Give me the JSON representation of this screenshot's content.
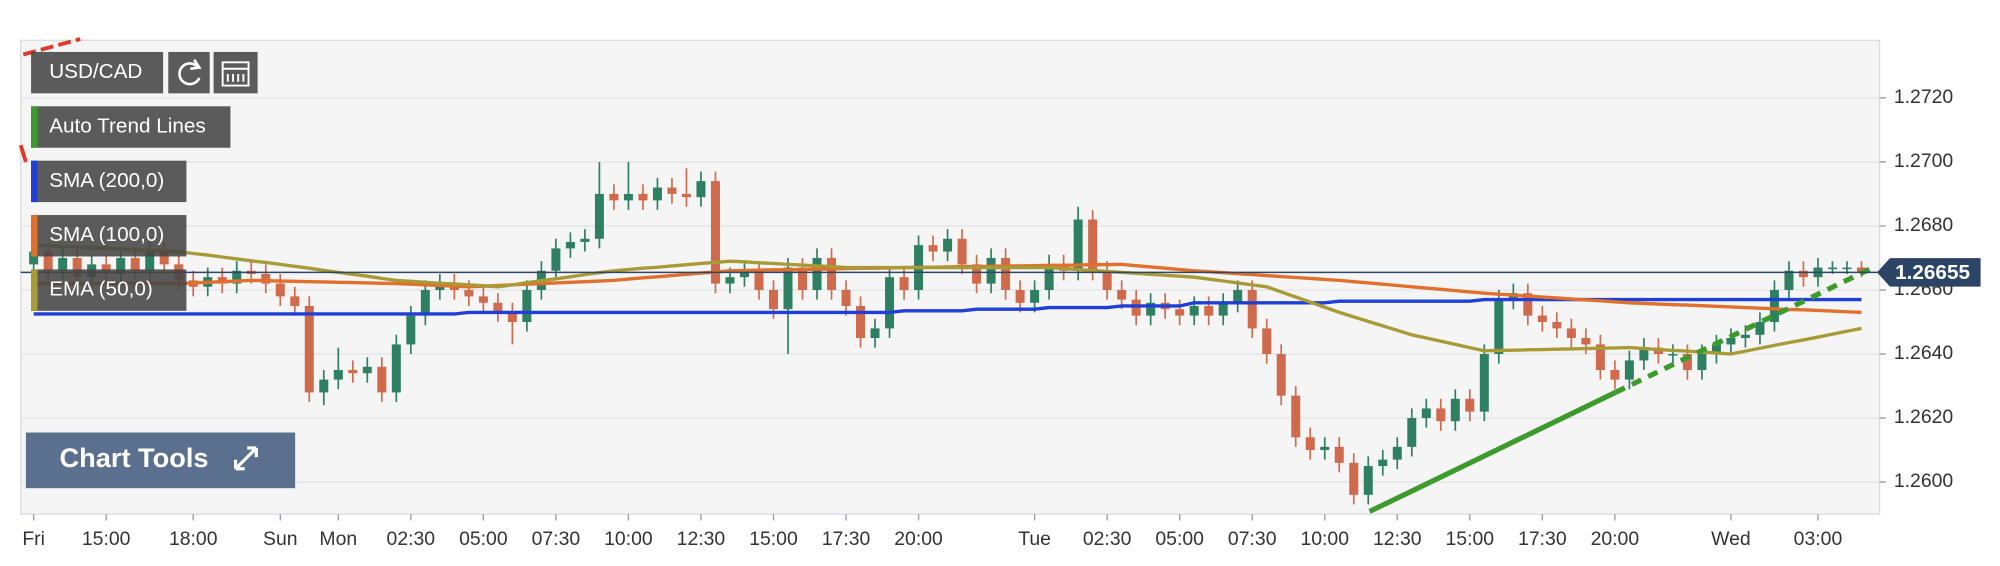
{
  "chart_data": {
    "type": "candlestick",
    "title": "USD/CAD",
    "up_color": "#2f7f62",
    "down_color": "#d06a4c",
    "ylim": [
      1.259,
      1.2738
    ],
    "yticks": [
      {
        "value": 1.26,
        "label": "1.2600"
      },
      {
        "value": 1.262,
        "label": "1.2620"
      },
      {
        "value": 1.264,
        "label": "1.2640"
      },
      {
        "value": 1.266,
        "label": "1.2660"
      },
      {
        "value": 1.268,
        "label": "1.2680"
      },
      {
        "value": 1.27,
        "label": "1.2700"
      },
      {
        "value": 1.272,
        "label": "1.2720"
      }
    ],
    "grid": true,
    "last_price": 1.26655,
    "trend_line": {
      "name": "Auto Trend Lines",
      "color": "#3d9a2c"
    },
    "categories": [
      "Fri",
      null,
      null,
      null,
      null,
      "15:00",
      null,
      null,
      null,
      null,
      null,
      "18:00",
      null,
      null,
      null,
      null,
      null,
      "Sun",
      null,
      null,
      null,
      "Mon",
      null,
      null,
      null,
      null,
      "02:30",
      null,
      null,
      null,
      null,
      "05:00",
      null,
      null,
      null,
      null,
      "07:30",
      null,
      null,
      null,
      null,
      "10:00",
      null,
      null,
      null,
      null,
      "12:30",
      null,
      null,
      null,
      null,
      "15:00",
      null,
      null,
      null,
      null,
      "17:30",
      null,
      null,
      null,
      null,
      "20:00",
      null,
      null,
      null,
      null,
      null,
      null,
      null,
      "Tue",
      null,
      null,
      null,
      null,
      "02:30",
      null,
      null,
      null,
      null,
      "05:00",
      null,
      null,
      null,
      null,
      "07:30",
      null,
      null,
      null,
      null,
      "10:00",
      null,
      null,
      null,
      null,
      "12:30",
      null,
      null,
      null,
      null,
      "15:00",
      null,
      null,
      null,
      null,
      "17:30",
      null,
      null,
      null,
      null,
      "20:00",
      null,
      null,
      null,
      null,
      null,
      null,
      null,
      "Wed",
      null,
      null,
      null,
      null,
      null,
      "03:00",
      null,
      null,
      null
    ],
    "open": [
      1.2668,
      1.2672,
      1.2666,
      1.267,
      1.2664,
      1.2668,
      1.2665,
      1.267,
      1.2666,
      1.2672,
      1.2668,
      1.2663,
      1.2661,
      1.2664,
      1.2662,
      1.2666,
      1.2665,
      1.2662,
      1.2658,
      1.2655,
      1.2628,
      1.2632,
      1.2635,
      1.2634,
      1.2636,
      1.2628,
      1.2643,
      1.2652,
      1.266,
      1.2662,
      1.266,
      1.2658,
      1.2656,
      1.2653,
      1.265,
      1.266,
      1.2666,
      1.2673,
      1.2675,
      1.2676,
      1.269,
      1.2688,
      1.269,
      1.2688,
      1.2692,
      1.269,
      1.2689,
      1.2694,
      1.2662,
      1.2664,
      1.2666,
      1.266,
      1.2654,
      1.2667,
      1.266,
      1.267,
      1.266,
      1.2655,
      1.2645,
      1.2648,
      1.2664,
      1.266,
      1.2674,
      1.2672,
      1.2676,
      1.2668,
      1.2662,
      1.267,
      1.266,
      1.2656,
      1.266,
      1.2668,
      1.2666,
      1.2682,
      1.2666,
      1.266,
      1.2657,
      1.2652,
      1.2656,
      1.2654,
      1.2652,
      1.2655,
      1.2652,
      1.2656,
      1.266,
      1.2648,
      1.264,
      1.2627,
      1.2614,
      1.261,
      1.2611,
      1.2606,
      1.2596,
      1.2605,
      1.2607,
      1.2611,
      1.262,
      1.2623,
      1.2619,
      1.2626,
      1.2622,
      1.264,
      1.2657,
      1.2659,
      1.2652,
      1.265,
      1.2648,
      1.2645,
      1.2643,
      1.2635,
      1.2632,
      1.2638,
      1.2642,
      1.264,
      1.264,
      1.2635,
      1.264,
      1.2643,
      1.2645,
      1.2646,
      1.265,
      1.266,
      1.2666,
      1.2664,
      1.2667,
      1.2667,
      1.2667
    ],
    "high": [
      1.2675,
      1.2675,
      1.2673,
      1.2673,
      1.2671,
      1.2671,
      1.2673,
      1.2673,
      1.2675,
      1.2675,
      1.2671,
      1.2666,
      1.2667,
      1.2667,
      1.2669,
      1.2669,
      1.2668,
      1.2665,
      1.2661,
      1.2658,
      1.2635,
      1.2642,
      1.2638,
      1.2639,
      1.2639,
      1.2646,
      1.2655,
      1.2663,
      1.2665,
      1.2665,
      1.2663,
      1.2661,
      1.2659,
      1.2656,
      1.2663,
      1.2669,
      1.2676,
      1.2678,
      1.2679,
      1.27,
      1.2693,
      1.27,
      1.2693,
      1.2695,
      1.2695,
      1.2698,
      1.2697,
      1.2697,
      1.2667,
      1.2669,
      1.2669,
      1.2663,
      1.267,
      1.267,
      1.2673,
      1.2673,
      1.2663,
      1.2658,
      1.2651,
      1.2667,
      1.2667,
      1.2677,
      1.2677,
      1.2679,
      1.2679,
      1.2671,
      1.2673,
      1.2673,
      1.2663,
      1.2663,
      1.2671,
      1.2671,
      1.2686,
      1.2685,
      1.2669,
      1.2663,
      1.266,
      1.2659,
      1.2659,
      1.2657,
      1.2658,
      1.2658,
      1.2659,
      1.2663,
      1.2663,
      1.2651,
      1.2643,
      1.263,
      1.2617,
      1.2614,
      1.2614,
      1.2609,
      1.2608,
      1.261,
      1.2614,
      1.2623,
      1.2626,
      1.2626,
      1.2629,
      1.2629,
      1.2643,
      1.266,
      1.2662,
      1.2662,
      1.2655,
      1.2653,
      1.2651,
      1.2648,
      1.2646,
      1.2638,
      1.2641,
      1.2645,
      1.2645,
      1.2643,
      1.2643,
      1.2643,
      1.2646,
      1.2648,
      1.2649,
      1.2653,
      1.2663,
      1.2669,
      1.2669,
      1.267,
      1.2669,
      1.2669,
      1.2669
    ],
    "low": [
      1.2665,
      1.2663,
      1.2663,
      1.2661,
      1.2661,
      1.2662,
      1.2662,
      1.2663,
      1.2663,
      1.2665,
      1.266,
      1.2658,
      1.2658,
      1.2659,
      1.2659,
      1.2662,
      1.2659,
      1.2655,
      1.2652,
      1.2625,
      1.2624,
      1.2629,
      1.2631,
      1.2631,
      1.2625,
      1.2625,
      1.264,
      1.2649,
      1.2657,
      1.2657,
      1.2655,
      1.2653,
      1.265,
      1.2643,
      1.2647,
      1.2657,
      1.2663,
      1.267,
      1.2672,
      1.2673,
      1.2685,
      1.2685,
      1.2685,
      1.2685,
      1.2687,
      1.2686,
      1.2686,
      1.2659,
      1.2659,
      1.2661,
      1.2657,
      1.2651,
      1.264,
      1.2657,
      1.2657,
      1.2657,
      1.2652,
      1.2642,
      1.2642,
      1.2645,
      1.2657,
      1.2657,
      1.2669,
      1.2669,
      1.2665,
      1.2659,
      1.2659,
      1.2657,
      1.2653,
      1.2653,
      1.2657,
      1.2663,
      1.2663,
      1.2663,
      1.2657,
      1.2654,
      1.2649,
      1.2649,
      1.2651,
      1.2649,
      1.2649,
      1.2649,
      1.2649,
      1.2653,
      1.2645,
      1.2637,
      1.2624,
      1.2611,
      1.2607,
      1.2607,
      1.2603,
      1.2593,
      1.2593,
      1.2602,
      1.2604,
      1.2608,
      1.2617,
      1.2616,
      1.2616,
      1.2619,
      1.2619,
      1.2637,
      1.2654,
      1.2649,
      1.2647,
      1.2645,
      1.2642,
      1.264,
      1.2632,
      1.2629,
      1.2629,
      1.2635,
      1.2637,
      1.2637,
      1.2632,
      1.2632,
      1.2637,
      1.264,
      1.2642,
      1.2643,
      1.2647,
      1.2657,
      1.2661,
      1.2661,
      1.2665,
      1.2665,
      1.2664
    ],
    "close": [
      1.2672,
      1.2666,
      1.267,
      1.2664,
      1.2668,
      1.2665,
      1.267,
      1.2666,
      1.2672,
      1.2668,
      1.2663,
      1.2661,
      1.2664,
      1.2662,
      1.2666,
      1.2665,
      1.2662,
      1.2658,
      1.2655,
      1.2628,
      1.2632,
      1.2635,
      1.2634,
      1.2636,
      1.2628,
      1.2643,
      1.2652,
      1.266,
      1.2662,
      1.266,
      1.2658,
      1.2656,
      1.2653,
      1.265,
      1.266,
      1.2666,
      1.2673,
      1.2675,
      1.2676,
      1.269,
      1.2688,
      1.269,
      1.2688,
      1.2692,
      1.269,
      1.2689,
      1.2694,
      1.2662,
      1.2664,
      1.2666,
      1.266,
      1.2654,
      1.2667,
      1.266,
      1.267,
      1.266,
      1.2655,
      1.2645,
      1.2648,
      1.2664,
      1.266,
      1.2674,
      1.2672,
      1.2676,
      1.2668,
      1.2662,
      1.267,
      1.266,
      1.2656,
      1.266,
      1.2668,
      1.2666,
      1.2682,
      1.2666,
      1.266,
      1.2657,
      1.2652,
      1.2656,
      1.2654,
      1.2652,
      1.2655,
      1.2652,
      1.2656,
      1.266,
      1.2648,
      1.264,
      1.2627,
      1.2614,
      1.261,
      1.2611,
      1.2606,
      1.2596,
      1.2605,
      1.2607,
      1.2611,
      1.262,
      1.2623,
      1.2619,
      1.2626,
      1.2622,
      1.264,
      1.2657,
      1.2659,
      1.2652,
      1.265,
      1.2648,
      1.2645,
      1.2643,
      1.2635,
      1.2632,
      1.2638,
      1.2642,
      1.264,
      1.264,
      1.2635,
      1.264,
      1.2643,
      1.2645,
      1.2646,
      1.265,
      1.266,
      1.2666,
      1.2664,
      1.2667,
      1.2667,
      1.2667,
      1.26655
    ],
    "series": [
      {
        "name": "SMA (200,0)",
        "color": "#1f3fd6",
        "values": [
          1.26525,
          1.26525,
          1.26525,
          1.26525,
          1.26525,
          1.26525,
          1.26525,
          1.26525,
          1.26525,
          1.26525,
          1.26525,
          1.26525,
          1.26525,
          1.26525,
          1.26525,
          1.26525,
          1.26525,
          1.26525,
          1.26525,
          1.26525,
          1.26525,
          1.26525,
          1.26525,
          1.26525,
          1.26525,
          1.26525,
          1.26525,
          1.26525,
          1.26525,
          1.26525,
          1.2653,
          1.2653,
          1.2653,
          1.2653,
          1.2653,
          1.2653,
          1.2653,
          1.2653,
          1.2653,
          1.2653,
          1.2653,
          1.2653,
          1.2653,
          1.2653,
          1.2653,
          1.2653,
          1.2653,
          1.2653,
          1.2653,
          1.2653,
          1.2653,
          1.2653,
          1.2653,
          1.2653,
          1.2653,
          1.2653,
          1.2653,
          1.2653,
          1.2653,
          1.2653,
          1.26535,
          1.26535,
          1.26535,
          1.26535,
          1.26535,
          1.2654,
          1.2654,
          1.2654,
          1.2654,
          1.2654,
          1.26545,
          1.26545,
          1.26545,
          1.26545,
          1.26545,
          1.2655,
          1.2655,
          1.2655,
          1.2655,
          1.2655,
          1.2656,
          1.2656,
          1.2656,
          1.2656,
          1.2656,
          1.2656,
          1.2656,
          1.2656,
          1.2656,
          1.2656,
          1.26565,
          1.26565,
          1.26565,
          1.26565,
          1.26565,
          1.26565,
          1.26565,
          1.26565,
          1.26565,
          1.26565,
          1.2657,
          1.2657,
          1.2657,
          1.2657,
          1.2657,
          1.2657,
          1.2657,
          1.2657,
          1.2657,
          1.2657,
          1.2657,
          1.2657,
          1.2657,
          1.2657,
          1.2657,
          1.2657,
          1.2657,
          1.2657,
          1.2657,
          1.2657,
          1.2657,
          1.2657,
          1.2657,
          1.2657,
          1.2657,
          1.2657,
          1.2657
        ]
      },
      {
        "name": "SMA (100,0)",
        "color": "#e0702c",
        "values": [
          1.2662,
          1.2662,
          1.2662,
          1.2662,
          1.2662,
          1.2662,
          1.2662,
          1.2662,
          1.2662,
          1.2662,
          1.2662,
          1.26622,
          1.26624,
          1.26626,
          1.26628,
          1.2663,
          1.26629,
          1.26628,
          1.26627,
          1.26626,
          1.26625,
          1.26624,
          1.26623,
          1.26622,
          1.26621,
          1.2662,
          1.26618,
          1.26616,
          1.26614,
          1.26612,
          1.2661,
          1.26612,
          1.26614,
          1.26616,
          1.26618,
          1.2662,
          1.26622,
          1.26624,
          1.26626,
          1.26628,
          1.2663,
          1.26634,
          1.26638,
          1.26641,
          1.26645,
          1.26649,
          1.26653,
          1.26656,
          1.2666,
          1.26661,
          1.26662,
          1.26663,
          1.26663,
          1.26664,
          1.26665,
          1.26666,
          1.26667,
          1.26668,
          1.26668,
          1.26669,
          1.2667,
          1.26671,
          1.26671,
          1.26672,
          1.26673,
          1.26673,
          1.26674,
          1.26675,
          1.26675,
          1.26676,
          1.26677,
          1.26677,
          1.26678,
          1.26679,
          1.26679,
          1.2668,
          1.26676,
          1.26672,
          1.26668,
          1.26664,
          1.2666,
          1.26657,
          1.26654,
          1.26651,
          1.26648,
          1.26645,
          1.26642,
          1.26639,
          1.26636,
          1.26633,
          1.2663,
          1.26626,
          1.26622,
          1.26618,
          1.26614,
          1.2661,
          1.26606,
          1.26602,
          1.26598,
          1.26594,
          1.2659,
          1.26587,
          1.26584,
          1.26581,
          1.26578,
          1.26575,
          1.26572,
          1.26569,
          1.26566,
          1.26563,
          1.2656,
          1.26558,
          1.26556,
          1.26554,
          1.26553,
          1.26551,
          1.26549,
          1.26547,
          1.26545,
          1.26543,
          1.26541,
          1.26539,
          1.26538,
          1.26536,
          1.26534,
          1.26532,
          1.2653
        ]
      },
      {
        "name": "EMA (50,0)",
        "color": "#a89a36",
        "values": [
          1.2674,
          1.26738,
          1.26736,
          1.26734,
          1.26732,
          1.2673,
          1.26728,
          1.26726,
          1.26724,
          1.26722,
          1.2672,
          1.26714,
          1.26709,
          1.26703,
          1.26697,
          1.26691,
          1.26686,
          1.2668,
          1.26674,
          1.26668,
          1.26661,
          1.26655,
          1.26649,
          1.26643,
          1.26636,
          1.2663,
          1.26627,
          1.26624,
          1.26621,
          1.26619,
          1.26616,
          1.26613,
          1.2661,
          1.26616,
          1.26623,
          1.26629,
          1.26635,
          1.26641,
          1.26648,
          1.26654,
          1.2666,
          1.26664,
          1.26668,
          1.26671,
          1.26675,
          1.26679,
          1.26683,
          1.26686,
          1.2669,
          1.26688,
          1.26685,
          1.26683,
          1.2668,
          1.26678,
          1.26675,
          1.26673,
          1.2667,
          1.2667,
          1.2667,
          1.2667,
          1.2667,
          1.2667,
          1.2667,
          1.2667,
          1.2667,
          1.2667,
          1.2667,
          1.2667,
          1.2667,
          1.2667,
          1.2667,
          1.26667,
          1.26664,
          1.26661,
          1.26658,
          1.26655,
          1.26652,
          1.26649,
          1.26646,
          1.26643,
          1.2664,
          1.26634,
          1.26628,
          1.26622,
          1.26616,
          1.2661,
          1.26594,
          1.26578,
          1.26562,
          1.26546,
          1.2653,
          1.26516,
          1.26502,
          1.26488,
          1.26474,
          1.2646,
          1.2645,
          1.2644,
          1.2643,
          1.2642,
          1.2641,
          1.26411,
          1.26412,
          1.26413,
          1.26414,
          1.26415,
          1.26416,
          1.26417,
          1.26418,
          1.26419,
          1.2642,
          1.26417,
          1.26414,
          1.26411,
          1.26409,
          1.26406,
          1.26403,
          1.264,
          1.26409,
          1.26418,
          1.26427,
          1.26436,
          1.26444,
          1.26453,
          1.26462,
          1.26471,
          1.2648
        ]
      }
    ]
  },
  "controls": {
    "chart_tools": "Chart Tools"
  }
}
